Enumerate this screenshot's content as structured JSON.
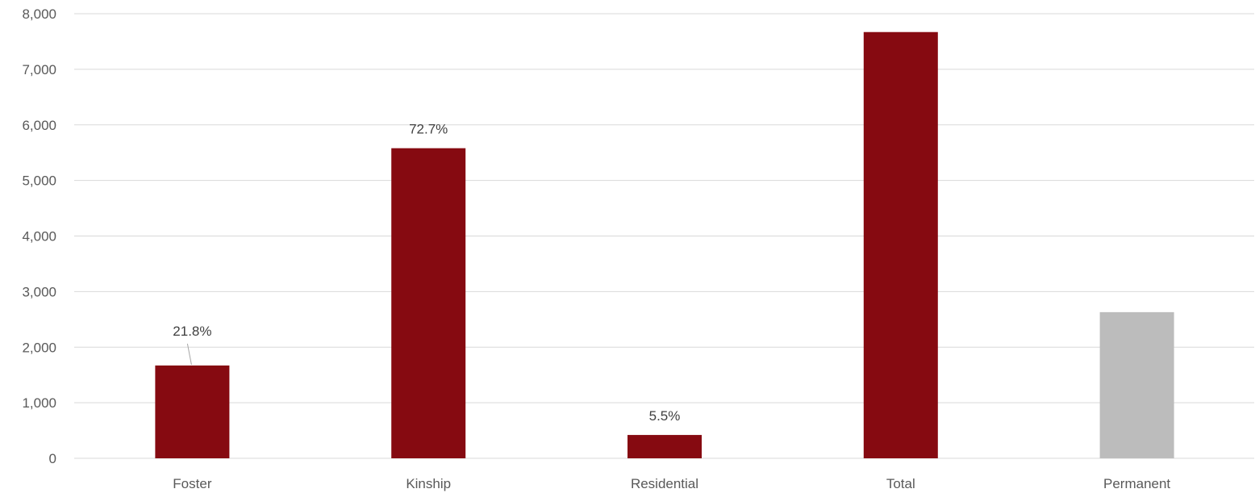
{
  "chart_data": {
    "type": "bar",
    "categories": [
      "Foster",
      "Kinship",
      "Residential",
      "Total",
      "Permanent"
    ],
    "values": [
      1670,
      5580,
      420,
      7670,
      2630
    ],
    "data_labels": [
      "21.8%",
      "72.7%",
      "5.5%",
      "",
      ""
    ],
    "bar_colors": [
      "#860a11",
      "#860a11",
      "#860a11",
      "#860a11",
      "#bcbcbc"
    ],
    "title": "",
    "xlabel": "",
    "ylabel": "",
    "ylim": [
      0,
      8000
    ],
    "yticks": [
      0,
      1000,
      2000,
      3000,
      4000,
      5000,
      6000,
      7000,
      8000
    ],
    "ytick_labels": [
      "0",
      "1,000",
      "2,000",
      "3,000",
      "4,000",
      "5,000",
      "6,000",
      "7,000",
      "8,000"
    ],
    "grid": true,
    "legend": "none"
  }
}
